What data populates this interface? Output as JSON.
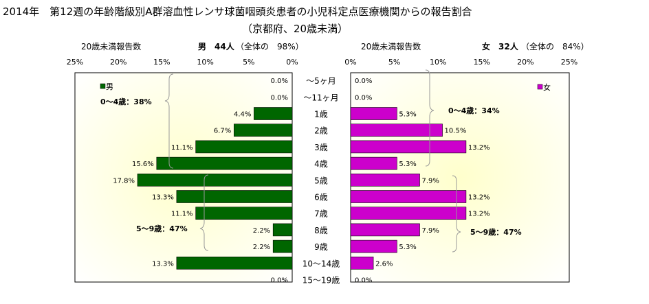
{
  "title_line1": "2014年　第12週の年齢階級別A群溶血性レンサ球菌咽頭炎患者の小児科定点医療機関からの報告割合",
  "title_line2": "（京都府、20歳未満）",
  "colors": {
    "male": "#006600",
    "female": "#cc00cc",
    "panel_fill_center": "#ffffcc",
    "panel_fill_edge": "#ffffff"
  },
  "chart_data": {
    "type": "bar",
    "categories": [
      "～5ヶ月",
      "～11ヶ月",
      "1歳",
      "2歳",
      "3歳",
      "4歳",
      "5歳",
      "6歳",
      "7歳",
      "8歳",
      "9歳",
      "10～14歳",
      "15～19歳"
    ],
    "xlim": [
      0,
      25
    ],
    "tick_labels": [
      "0%",
      "5%",
      "10%",
      "15%",
      "20%",
      "25%"
    ],
    "male": {
      "legend": "男",
      "header_label": "20歳未満報告数",
      "header_count": "男　44人",
      "header_share": "（全体の　98%）",
      "values": [
        0.0,
        0.0,
        4.4,
        6.7,
        11.1,
        15.6,
        17.8,
        13.3,
        11.1,
        2.2,
        2.2,
        13.3,
        0.0
      ],
      "value_labels": [
        "0.0%",
        "0.0%",
        "4.4%",
        "6.7%",
        "11.1%",
        "15.6%",
        "17.8%",
        "13.3%",
        "11.1%",
        "2.2%",
        "2.2%",
        "13.3%",
        "0.0%"
      ],
      "annotations": [
        "0～4歳：38%",
        "5～9歳：47%"
      ]
    },
    "female": {
      "legend": "女",
      "header_label": "20歳未満報告数",
      "header_count": "女　32人",
      "header_share": "（全体の　84%）",
      "values": [
        0.0,
        0.0,
        5.3,
        10.5,
        13.2,
        5.3,
        7.9,
        13.2,
        13.2,
        7.9,
        5.3,
        2.6,
        0.0
      ],
      "value_labels": [
        "0.0%",
        "0.0%",
        "5.3%",
        "10.5%",
        "13.2%",
        "5.3%",
        "7.9%",
        "13.2%",
        "13.2%",
        "7.9%",
        "5.3%",
        "2.6%",
        "0.0%"
      ],
      "annotations": [
        "0～4歳：34%",
        "5～9歳：47%"
      ]
    }
  }
}
